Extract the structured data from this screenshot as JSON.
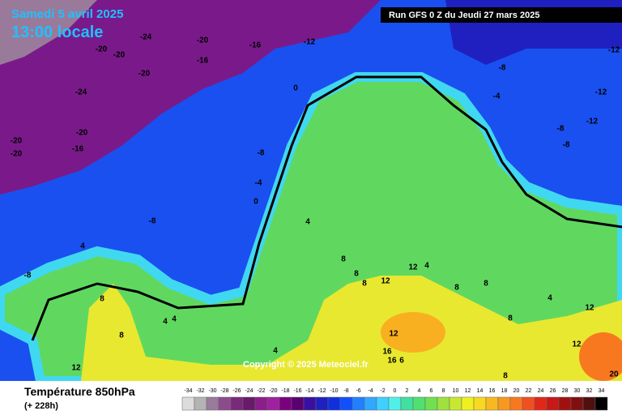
{
  "header": {
    "date": "Samedi 5 avril 2025",
    "time": "13:00 locale",
    "run": "Run GFS 0 Z du Jeudi 27 mars 2025"
  },
  "footer": {
    "title": "Température 850hPa",
    "subtitle": "(+ 228h)",
    "copyright": "Copyright © 2025 Meteociel.fr"
  },
  "colorbar": {
    "values": [
      -34,
      -32,
      -30,
      -28,
      -26,
      -24,
      -22,
      -20,
      -18,
      -16,
      -14,
      -12,
      -10,
      -8,
      -6,
      -4,
      -2,
      0,
      2,
      4,
      6,
      8,
      10,
      12,
      14,
      16,
      18,
      20,
      22,
      24,
      26,
      28,
      30,
      32,
      34
    ],
    "colors": [
      "#dcdcdc",
      "#b4b4b4",
      "#9a7a9a",
      "#8c4c8c",
      "#7a2a7a",
      "#6a1a6a",
      "#8a1e8a",
      "#a020a0",
      "#7a0080",
      "#5a0070",
      "#3a10a0",
      "#2020c0",
      "#1030e0",
      "#1050ff",
      "#2080ff",
      "#30a8ff",
      "#40d0ff",
      "#50f0e8",
      "#40e0a0",
      "#50e070",
      "#70e050",
      "#a0e040",
      "#c8e830",
      "#f0f020",
      "#f8d820",
      "#f8b820",
      "#f89820",
      "#f87820",
      "#f05020",
      "#e02818",
      "#c81818",
      "#a01010",
      "#801010",
      "#501010",
      "#000000"
    ]
  },
  "contour_labels": [
    "-24",
    "-20",
    "-20",
    "-20",
    "-16",
    "-16",
    "-12",
    "-20",
    "-24",
    "-20",
    "-16",
    "-20",
    "-20",
    "-12",
    "-12",
    "-12",
    "-8",
    "-4",
    "-8",
    "-8",
    "0",
    "-8",
    "-4",
    "0",
    "-8",
    "4",
    "4",
    "-8",
    "8",
    "8",
    "8",
    "12",
    "12",
    "4",
    "8",
    "8",
    "8",
    "4",
    "12",
    "12",
    "8",
    "8",
    "4",
    "4",
    "12",
    "4",
    "12",
    "16",
    "16",
    "6",
    "8",
    "20"
  ]
}
